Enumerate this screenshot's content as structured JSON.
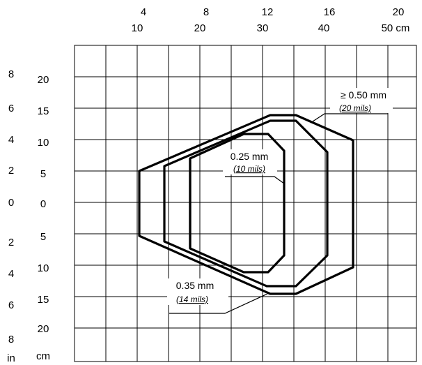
{
  "top_axis": {
    "inch_labels": [
      "4",
      "8",
      "12",
      "16",
      "20"
    ],
    "cm_labels": [
      "10",
      "20",
      "30",
      "40",
      "50 cm"
    ]
  },
  "left_axis": {
    "inch_labels": [
      "8",
      "6",
      "4",
      "2",
      "0",
      "2",
      "4",
      "6",
      "8",
      "in"
    ],
    "cm_labels": [
      "20",
      "15",
      "10",
      "5",
      "0",
      "5",
      "10",
      "15",
      "20",
      "cm"
    ]
  },
  "zones": [
    {
      "size": "≥ 0.50 mm",
      "mils": "(20 mils)"
    },
    {
      "size": "0.25 mm",
      "mils": "(10 mils)"
    },
    {
      "size": "0.35 mm",
      "mils": "(14 mils)"
    }
  ]
}
